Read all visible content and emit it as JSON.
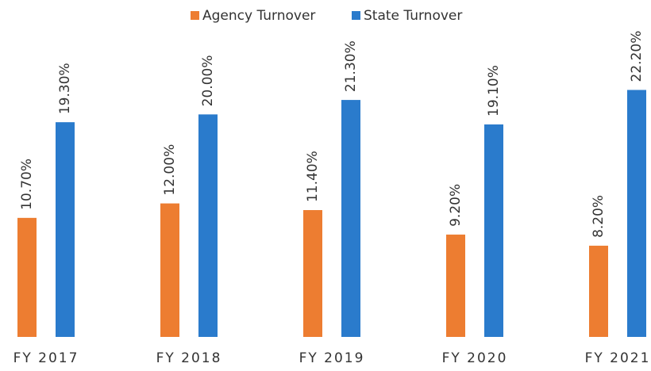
{
  "chart_data": {
    "type": "bar",
    "categories": [
      "FY 2017",
      "FY 2018",
      "FY 2019",
      "FY 2020",
      "FY 2021"
    ],
    "series": [
      {
        "name": "Agency Turnover",
        "color": "#ed7d31",
        "values": [
          10.7,
          12.0,
          11.4,
          9.2,
          8.2
        ],
        "value_labels": [
          "10.70%",
          "12.00%",
          "11.40%",
          "9.20%",
          "8.20%"
        ]
      },
      {
        "name": "State Turnover",
        "color": "#2a7bcc",
        "values": [
          19.3,
          20.0,
          21.3,
          19.1,
          22.2
        ],
        "value_labels": [
          "19.30%",
          "20.00%",
          "21.30%",
          "19.10%",
          "22.20%"
        ]
      }
    ],
    "ylim": [
      0,
      30
    ],
    "legend": "top"
  }
}
